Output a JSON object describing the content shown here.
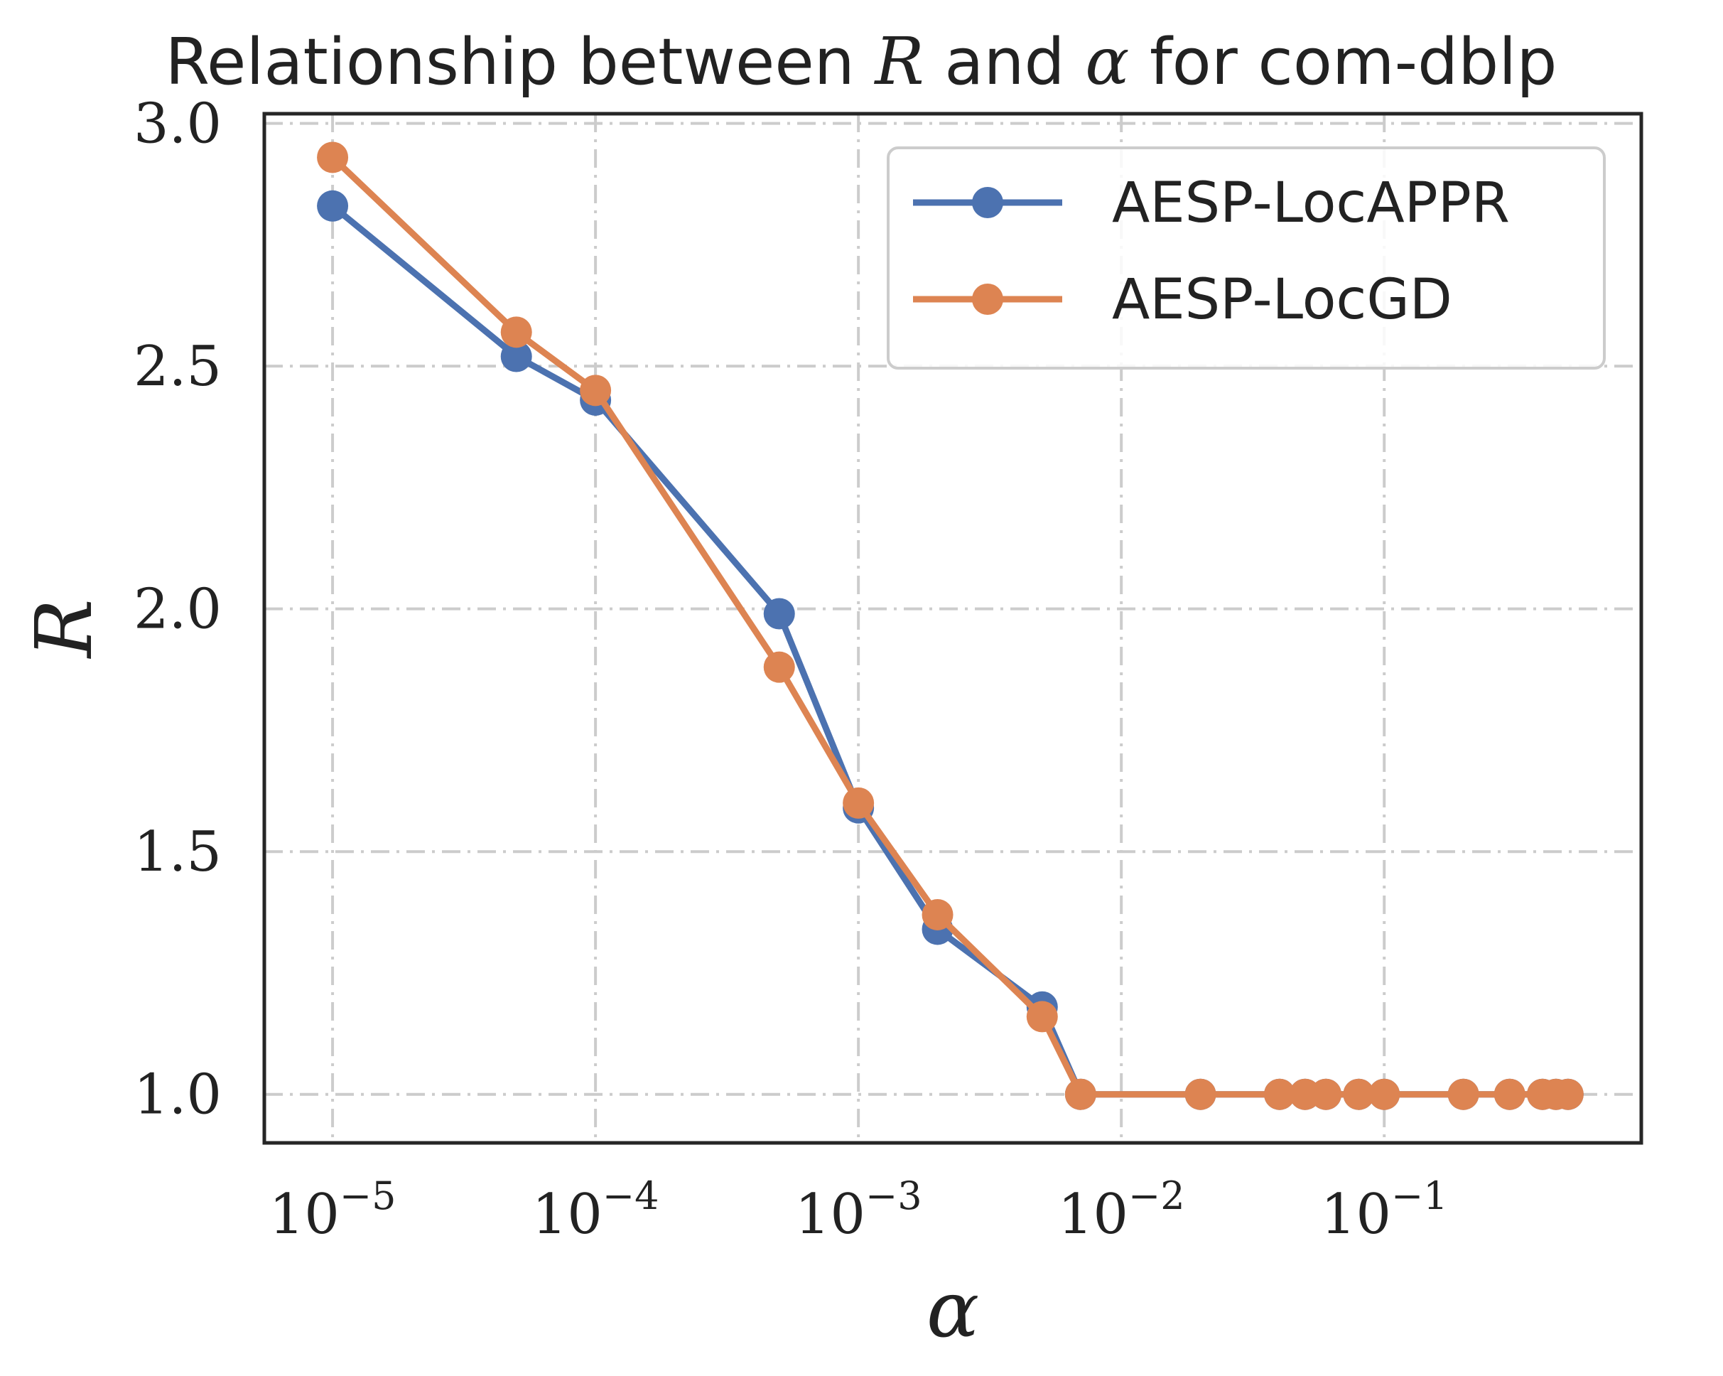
{
  "chart_data": {
    "type": "line",
    "title_parts": [
      "Relationship between ",
      "R",
      " and ",
      "α",
      " for com-dblp"
    ],
    "xlabel": "α",
    "ylabel": "R",
    "xscale": "log",
    "xlim": [
      5.5e-06,
      0.95
    ],
    "ylim": [
      0.9,
      3.02
    ],
    "x_ticks": [
      {
        "value": 1e-05,
        "base": "10",
        "exp": "−5"
      },
      {
        "value": 0.0001,
        "base": "10",
        "exp": "−4"
      },
      {
        "value": 0.001,
        "base": "10",
        "exp": "−3"
      },
      {
        "value": 0.01,
        "base": "10",
        "exp": "−2"
      },
      {
        "value": 0.1,
        "base": "10",
        "exp": "−1"
      }
    ],
    "y_ticks": [
      {
        "value": 1.0,
        "label": "1.0"
      },
      {
        "value": 1.5,
        "label": "1.5"
      },
      {
        "value": 2.0,
        "label": "2.0"
      },
      {
        "value": 2.5,
        "label": "2.5"
      },
      {
        "value": 3.0,
        "label": "3.0"
      }
    ],
    "grid": true,
    "legend_position": "top-right",
    "x": [
      1e-05,
      5e-05,
      0.0001,
      0.0005,
      0.001,
      0.002,
      0.005,
      0.007,
      0.02,
      0.04,
      0.05,
      0.06,
      0.08,
      0.1,
      0.2,
      0.3,
      0.4,
      0.45,
      0.5
    ],
    "series": [
      {
        "name": "AESP-LocAPPR",
        "color": "#4c72b0",
        "values": [
          2.83,
          2.52,
          2.43,
          1.99,
          1.59,
          1.34,
          1.18,
          1.0,
          1.0,
          1.0,
          1.0,
          1.0,
          1.0,
          1.0,
          1.0,
          1.0,
          1.0,
          1.0,
          1.0
        ]
      },
      {
        "name": "AESP-LocGD",
        "color": "#dd8452",
        "values": [
          2.93,
          2.57,
          2.45,
          1.88,
          1.6,
          1.37,
          1.16,
          1.0,
          1.0,
          1.0,
          1.0,
          1.0,
          1.0,
          1.0,
          1.0,
          1.0,
          1.0,
          1.0,
          1.0
        ]
      }
    ]
  }
}
